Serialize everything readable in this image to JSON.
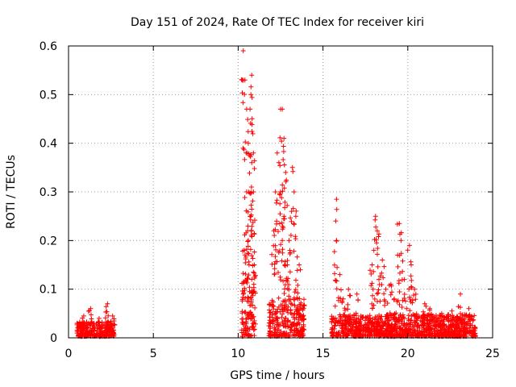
{
  "chart_data": {
    "type": "scatter",
    "title": "Day 151 of 2024, Rate Of TEC Index for receiver kiri",
    "xlabel": "GPS time / hours",
    "ylabel": "ROTI / TECUs",
    "xlim": [
      0,
      25
    ],
    "ylim": [
      0,
      0.6
    ],
    "xticks": [
      0,
      5,
      10,
      15,
      20,
      25
    ],
    "yticks": [
      0,
      0.1,
      0.2,
      0.3,
      0.4,
      0.5,
      0.6
    ],
    "xtick_labels": [
      "0",
      "5",
      "10",
      "15",
      "20",
      "25"
    ],
    "ytick_labels": [
      "0",
      "0.1",
      "0.2",
      "0.3",
      "0.4",
      "0.5",
      "0.6"
    ],
    "grid": true,
    "marker": "+",
    "series_color": "#ff0000",
    "clusters": [
      {
        "x_start": 0.5,
        "x_end": 2.7,
        "base_max": 0.03,
        "peaks": [
          [
            1.3,
            0.06
          ],
          [
            2.3,
            0.07
          ],
          [
            1.8,
            0.04
          ],
          [
            2.6,
            0.045
          ],
          [
            0.9,
            0.045
          ]
        ]
      },
      {
        "x_start": 10.2,
        "x_end": 11.05,
        "base_max": 0.12,
        "peaks": [
          [
            10.3,
            0.59
          ],
          [
            10.4,
            0.53
          ],
          [
            10.8,
            0.54
          ],
          [
            10.75,
            0.5
          ],
          [
            10.7,
            0.47
          ],
          [
            10.5,
            0.47
          ],
          [
            10.6,
            0.4
          ],
          [
            10.5,
            0.3
          ],
          [
            10.8,
            0.36
          ],
          [
            10.9,
            0.38
          ],
          [
            10.7,
            0.25
          ],
          [
            10.9,
            0.3
          ],
          [
            10.6,
            0.2
          ],
          [
            10.35,
            0.18
          ],
          [
            10.95,
            0.15
          ]
        ]
      },
      {
        "x_start": 11.8,
        "x_end": 13.9,
        "base_max": 0.08,
        "peaks": [
          [
            12.5,
            0.47
          ],
          [
            12.6,
            0.47
          ],
          [
            12.7,
            0.41
          ],
          [
            12.3,
            0.38
          ],
          [
            12.4,
            0.36
          ],
          [
            12.8,
            0.34
          ],
          [
            12.2,
            0.3
          ],
          [
            13.2,
            0.35
          ],
          [
            12.5,
            0.3
          ],
          [
            12.7,
            0.25
          ],
          [
            13.0,
            0.2
          ],
          [
            12.9,
            0.15
          ],
          [
            13.3,
            0.3
          ],
          [
            13.4,
            0.25
          ],
          [
            13.6,
            0.15
          ],
          [
            12.1,
            0.22
          ],
          [
            12.6,
            0.2
          ]
        ]
      },
      {
        "x_start": 15.5,
        "x_end": 24.0,
        "base_max": 0.045,
        "peaks": [
          [
            15.8,
            0.285
          ],
          [
            15.8,
            0.2
          ],
          [
            16.0,
            0.13
          ],
          [
            16.5,
            0.1
          ],
          [
            16.2,
            0.08
          ],
          [
            18.1,
            0.25
          ],
          [
            18.2,
            0.22
          ],
          [
            17.9,
            0.15
          ],
          [
            18.3,
            0.12
          ],
          [
            18.0,
            0.18
          ],
          [
            18.5,
            0.16
          ],
          [
            18.7,
            0.1
          ],
          [
            19.0,
            0.11
          ],
          [
            19.5,
            0.235
          ],
          [
            19.6,
            0.2
          ],
          [
            19.4,
            0.17
          ],
          [
            19.8,
            0.12
          ],
          [
            20.1,
            0.19
          ],
          [
            20.2,
            0.15
          ],
          [
            20.4,
            0.1
          ],
          [
            19.2,
            0.08
          ],
          [
            21.3,
            0.06
          ],
          [
            22.0,
            0.05
          ],
          [
            23.1,
            0.09
          ],
          [
            23.6,
            0.06
          ],
          [
            17.0,
            0.09
          ],
          [
            21.0,
            0.07
          ],
          [
            22.6,
            0.055
          ]
        ]
      }
    ]
  }
}
